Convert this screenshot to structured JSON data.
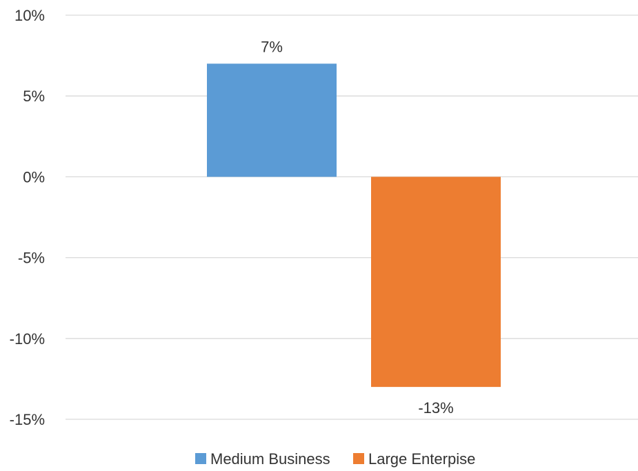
{
  "chart_data": {
    "type": "bar",
    "categories": [
      ""
    ],
    "series": [
      {
        "name": "Medium Business",
        "values": [
          7
        ],
        "data_labels": [
          "7%"
        ],
        "color": "#5b9bd5"
      },
      {
        "name": "Large Enterpise",
        "values": [
          -13
        ],
        "data_labels": [
          "-13%"
        ],
        "color": "#ed7d31"
      }
    ],
    "ylim": [
      -15,
      10
    ],
    "yticks": [
      10,
      5,
      0,
      -5,
      -10,
      -15
    ],
    "ytick_labels": [
      "10%",
      "5%",
      "0%",
      "-5%",
      "-10%",
      "-15%"
    ],
    "grid": true,
    "legend": "bottom",
    "title": "",
    "xlabel": "",
    "ylabel": ""
  }
}
